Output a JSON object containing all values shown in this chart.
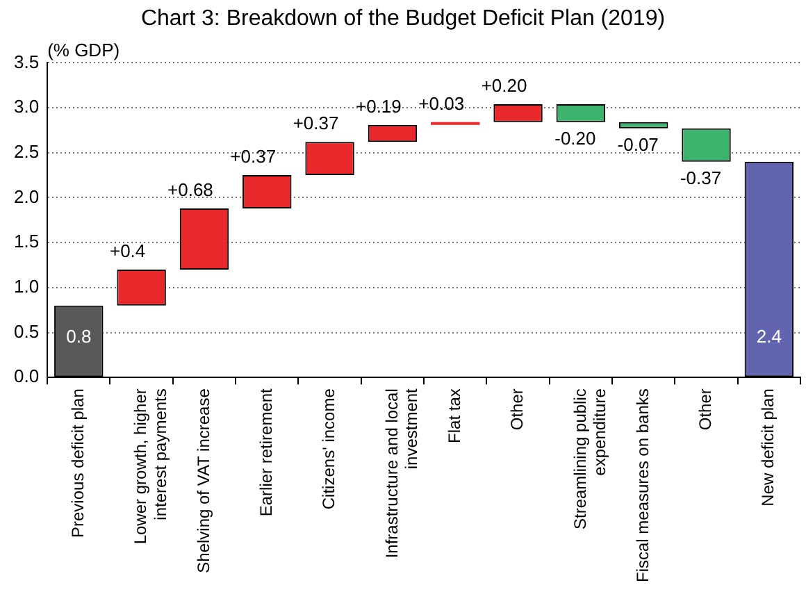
{
  "chart_data": {
    "type": "bar",
    "title": "Chart 3: Breakdown of the Budget Deficit Plan (2019)",
    "ylabel": "(% GDP)",
    "categories": [
      "Previous deficit plan",
      "Lower growth, higher interest payments",
      "Shelving of VAT increase",
      "Earlier retirement",
      "Citizens' income",
      "Infrastructure and local investment",
      "Flat tax",
      "Other",
      "Streamlining public expenditure",
      "Fiscal measures on banks",
      "Other",
      "New deficit plan"
    ],
    "values": [
      0.8,
      0.4,
      0.68,
      0.37,
      0.37,
      0.19,
      0.03,
      0.2,
      -0.2,
      -0.07,
      -0.37,
      2.4
    ],
    "base": [
      0,
      0.8,
      1.2,
      1.88,
      2.25,
      2.62,
      2.81,
      2.84,
      3.04,
      2.84,
      2.77,
      0
    ],
    "value_labels": [
      "0.8",
      "+0.4",
      "+0.68",
      "+0.37",
      "+0.37",
      "+0.19",
      "+0.03",
      "+0.20",
      "-0.20",
      "-0.07",
      "-0.37",
      "2.4"
    ],
    "colors": [
      "#595959",
      "#e8282b",
      "#e8282b",
      "#e8282b",
      "#e8282b",
      "#e8282b",
      "#e8282b",
      "#e8282b",
      "#3cb46e",
      "#3cb46e",
      "#3cb46e",
      "#6264b0"
    ],
    "ylim": [
      0,
      3.5
    ],
    "yticks": [
      {
        "value": 0,
        "label": "0.0"
      },
      {
        "value": 0.5,
        "label": "0.5"
      },
      {
        "value": 1,
        "label": "1.0"
      },
      {
        "value": 1.5,
        "label": "1.5"
      },
      {
        "value": 2,
        "label": "2.0"
      },
      {
        "value": 2.5,
        "label": "2.5"
      },
      {
        "value": 3,
        "label": "3.0"
      },
      {
        "value": 3.5,
        "label": "3.5"
      }
    ],
    "grid": "y",
    "legend": false
  }
}
